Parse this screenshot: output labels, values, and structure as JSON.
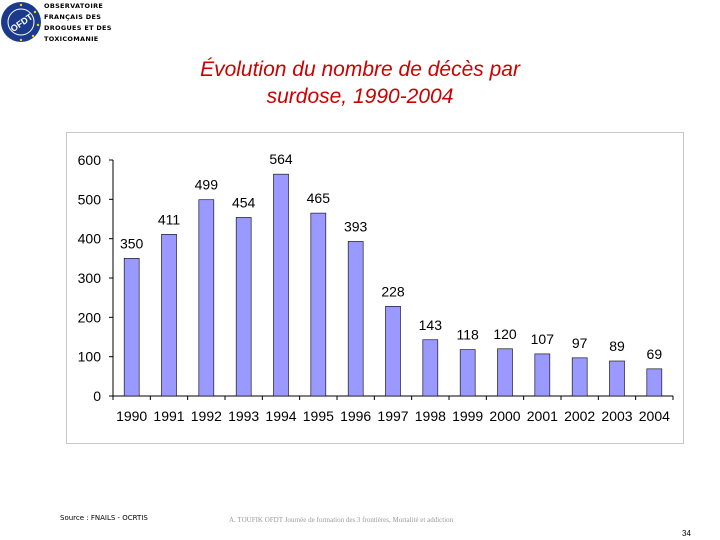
{
  "logo": {
    "badge_text": "OFDT",
    "lines": [
      "OBSERVATOIRE",
      "FRANÇAIS DES",
      "DROGUES ET DES",
      "TOXICOMANIE"
    ],
    "badge_color": "#1b3a8c"
  },
  "title": {
    "line1": "Évolution du nombre de décès par",
    "line2": "surdose, 1990-2004"
  },
  "chart_data": {
    "type": "bar",
    "title": "Évolution du nombre de décès par surdose, 1990-2004",
    "xlabel": "",
    "ylabel": "",
    "categories": [
      "1990",
      "1991",
      "1992",
      "1993",
      "1994",
      "1995",
      "1996",
      "1997",
      "1998",
      "1999",
      "2000",
      "2001",
      "2002",
      "2003",
      "2004"
    ],
    "values": [
      350,
      411,
      499,
      454,
      564,
      465,
      393,
      228,
      143,
      118,
      120,
      107,
      97,
      89,
      69
    ],
    "ylim": [
      0,
      600
    ],
    "yticks": [
      0,
      100,
      200,
      300,
      400,
      500,
      600
    ],
    "bar_color": "#9999ff",
    "bar_edge_color": "#000000",
    "grid": false,
    "legend": "none"
  },
  "footer": {
    "source": "Source : FNAILS - OCRTIS",
    "center_text": "A. TOUFIK OFDT Journée de formation des 3 frontières, Mortalité et addiction",
    "page_number": "34"
  }
}
